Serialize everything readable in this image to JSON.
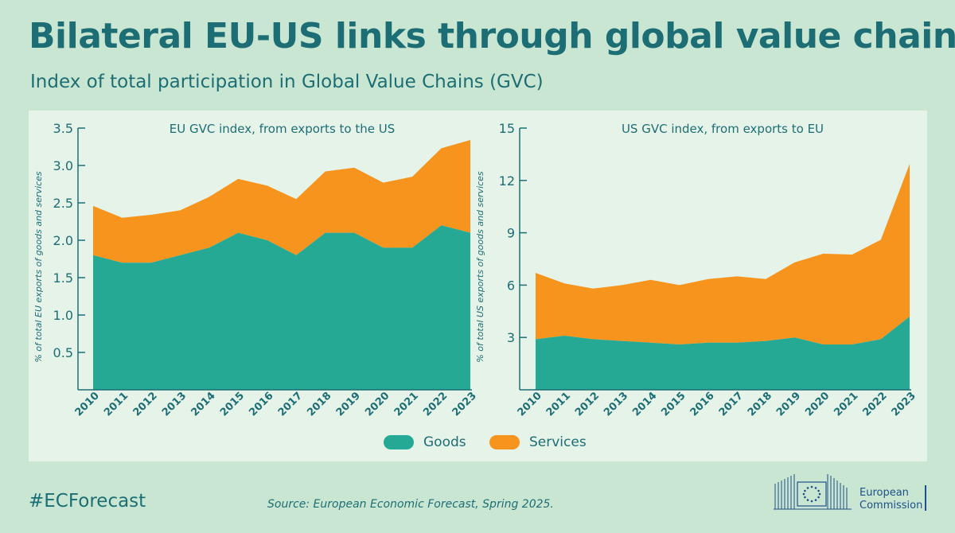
{
  "title": "Bilateral EU-US links through global value chains",
  "subtitle": "Index of total participation in Global Value Chains (GVC)",
  "legend": {
    "goods_label": "Goods",
    "services_label": "Services"
  },
  "colors": {
    "goods": "#26a994",
    "services": "#f7941d",
    "text": "#1d6e74",
    "panel": "#e6f3e9",
    "background": "#c9e6d2"
  },
  "chart_data": [
    {
      "type": "area",
      "stacked": true,
      "title": "EU GVC index, from exports to the US",
      "xlabel": "",
      "ylabel": "% of total EU exports of goods and services",
      "ylim": [
        0,
        3.5
      ],
      "yticks": [
        0.5,
        1.0,
        1.5,
        2.0,
        2.5,
        3.0,
        3.5
      ],
      "ytick_labels": [
        "0.5",
        "1.0",
        "1.5",
        "2.0",
        "2.5",
        "3.0",
        "3.5"
      ],
      "categories": [
        "2010",
        "2011",
        "2012",
        "2013",
        "2014",
        "2015",
        "2016",
        "2017",
        "2018",
        "2019",
        "2020",
        "2021",
        "2022",
        "2023"
      ],
      "series": [
        {
          "name": "Goods",
          "values": [
            1.8,
            1.7,
            1.7,
            1.8,
            1.9,
            2.1,
            2.0,
            1.8,
            2.1,
            2.1,
            1.9,
            1.9,
            2.2,
            2.1
          ]
        },
        {
          "name": "Services",
          "values": [
            0.66,
            0.6,
            0.64,
            0.6,
            0.68,
            0.72,
            0.73,
            0.75,
            0.82,
            0.87,
            0.87,
            0.95,
            1.03,
            1.24
          ]
        }
      ]
    },
    {
      "type": "area",
      "stacked": true,
      "title": "US GVC index, from exports to EU",
      "xlabel": "",
      "ylabel": "% of total US exports of goods and services",
      "ylim": [
        0,
        15
      ],
      "yticks": [
        3,
        6,
        9,
        12,
        15
      ],
      "ytick_labels": [
        "3",
        "6",
        "9",
        "12",
        "15"
      ],
      "categories": [
        "2010",
        "2011",
        "2012",
        "2013",
        "2014",
        "2015",
        "2016",
        "2017",
        "2018",
        "2019",
        "2020",
        "2021",
        "2022",
        "2023"
      ],
      "series": [
        {
          "name": "Goods",
          "values": [
            2.9,
            3.1,
            2.9,
            2.8,
            2.7,
            2.6,
            2.7,
            2.7,
            2.8,
            3.0,
            2.6,
            2.6,
            2.9,
            4.2
          ]
        },
        {
          "name": "Services",
          "values": [
            3.8,
            3.0,
            2.9,
            3.2,
            3.6,
            3.4,
            3.65,
            3.8,
            3.55,
            4.3,
            5.2,
            5.15,
            5.7,
            8.75
          ]
        }
      ]
    }
  ],
  "footer": {
    "hashtag": "#ECForecast",
    "source": "Source: European Economic Forecast, Spring 2025.",
    "org_line1": "European",
    "org_line2": "Commission"
  }
}
